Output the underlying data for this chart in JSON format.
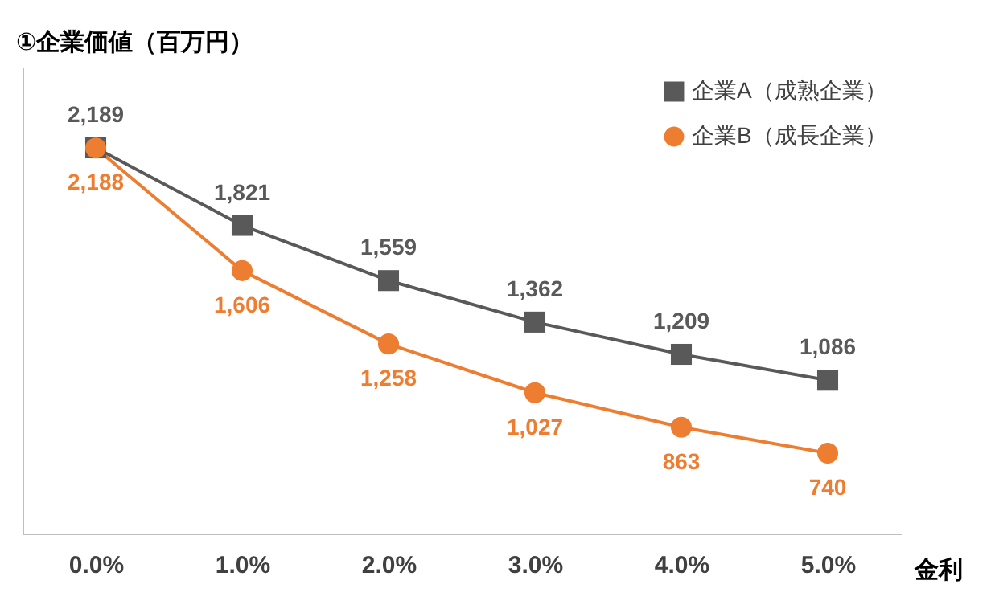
{
  "chart_data": {
    "type": "line",
    "title": "①企業価値（百万円）",
    "xlabel": "金利",
    "categories": [
      "0.0%",
      "1.0%",
      "2.0%",
      "3.0%",
      "4.0%",
      "5.0%"
    ],
    "series": [
      {
        "name": "企業A（成熟企業）",
        "color": "#595959",
        "marker": "square",
        "values": [
          2189,
          1821,
          1559,
          1362,
          1209,
          1086
        ],
        "value_labels": [
          "2,189",
          "1,821",
          "1,559",
          "1,362",
          "1,209",
          "1,086"
        ]
      },
      {
        "name": "企業B（成長企業）",
        "color": "#ed7d31",
        "marker": "circle",
        "values": [
          2188,
          1606,
          1258,
          1027,
          863,
          740
        ],
        "value_labels": [
          "2,188",
          "1,606",
          "1,258",
          "1,027",
          "863",
          "740"
        ]
      }
    ],
    "legend": "top right",
    "grid": false,
    "tick_labels": "x",
    "line_style": "solid"
  }
}
